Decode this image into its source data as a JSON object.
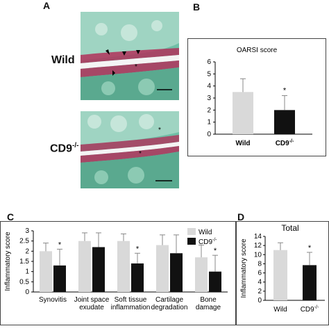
{
  "panels": {
    "A": {
      "letter": "A",
      "wild_label": "Wild",
      "cd9_label_base": "CD9",
      "cd9_label_sup": "-/-"
    },
    "B": {
      "letter": "B"
    },
    "C": {
      "letter": "C"
    },
    "D": {
      "letter": "D"
    }
  },
  "colors": {
    "wild": "#d9d9d9",
    "cd9": "#111111",
    "tissue_green": "#5fb59b",
    "tissue_red": "#b0315a"
  },
  "chart_data": [
    {
      "id": "B",
      "type": "bar",
      "title": "OARSI score",
      "categories": [
        "Wild",
        "CD9"
      ],
      "category_sup": [
        "",
        "-/-"
      ],
      "values": [
        3.5,
        2.0
      ],
      "errors": [
        1.1,
        1.2
      ],
      "colors": [
        "#d9d9d9",
        "#111111"
      ],
      "significance": [
        "",
        "*"
      ],
      "ylim": [
        0,
        6
      ],
      "yticks": [
        "0",
        "1",
        "2",
        "3",
        "4",
        "5",
        "6"
      ]
    },
    {
      "id": "C",
      "type": "bar",
      "ylabel": "Inflammatory score",
      "ylim": [
        0,
        3
      ],
      "yticks": [
        "0",
        "0.5",
        "1",
        "1.5",
        "2",
        "2.5",
        "3"
      ],
      "categories": [
        "Synovitis",
        "Joint space\nexudate",
        "Soft tissue\ninflammation",
        "Cartilage\ndegradation",
        "Bone\ndamage"
      ],
      "series": [
        {
          "name": "Wild",
          "values": [
            2.0,
            2.5,
            2.5,
            2.3,
            1.7
          ],
          "errors": [
            0.4,
            0.4,
            0.35,
            0.5,
            0.6
          ],
          "color": "#d9d9d9"
        },
        {
          "name": "CD9",
          "name_sup": "-/-",
          "values": [
            1.3,
            2.2,
            1.4,
            1.9,
            1.0
          ],
          "errors": [
            0.8,
            0.7,
            0.5,
            0.9,
            0.8
          ],
          "color": "#111111",
          "significance": [
            "*",
            "",
            "*",
            "",
            "*"
          ]
        }
      ],
      "legend": "top-right"
    },
    {
      "id": "D",
      "type": "bar",
      "title": "Total",
      "ylabel": "Inflammatory score",
      "categories": [
        "Wild",
        "CD9"
      ],
      "category_sup": [
        "",
        "-/-"
      ],
      "values": [
        11.0,
        7.7
      ],
      "errors": [
        1.6,
        2.8
      ],
      "colors": [
        "#d9d9d9",
        "#111111"
      ],
      "significance": [
        "",
        "*"
      ],
      "ylim": [
        0,
        14
      ],
      "yticks": [
        "0",
        "2",
        "4",
        "6",
        "8",
        "10",
        "12",
        "14"
      ]
    }
  ]
}
